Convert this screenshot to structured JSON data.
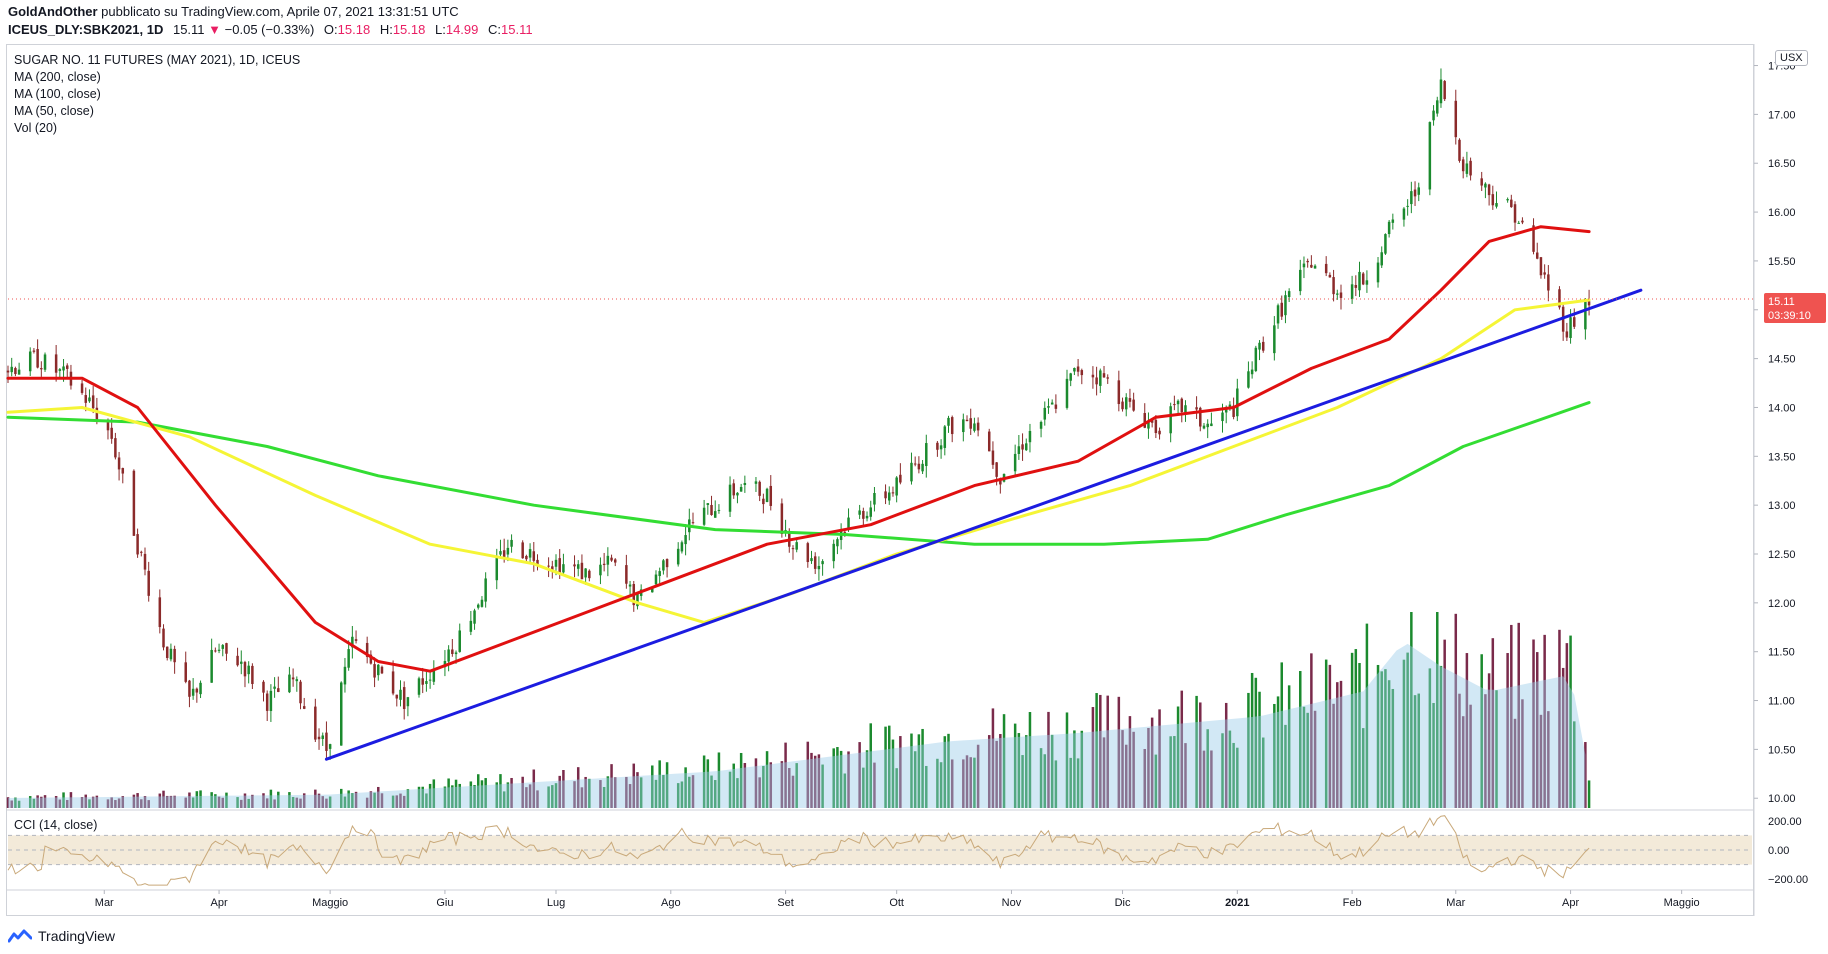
{
  "header": {
    "publisher": "GoldAndOther",
    "published_text": "pubblicato su TradingView.com, Aprile 07, 2021 13:31:51 UTC",
    "symbol": "ICEUS_DLY:SBK2021, 1D",
    "last": "15.11",
    "change": "−0.05 (−0.33%)",
    "open_label": "O:",
    "open": "15.18",
    "high_label": "H:",
    "high": "15.18",
    "low_label": "L:",
    "low": "14.99",
    "close_label": "C:",
    "close": "15.11"
  },
  "legend": {
    "title": "SUGAR NO. 11 FUTURES (MAY 2021), 1D, ICEUS",
    "ma200": "MA (200, close)",
    "ma100": "MA (100, close)",
    "ma50": "MA (50, close)",
    "vol": "Vol (20)"
  },
  "cci_label": "CCI (14, close)",
  "currency_badge": "USX",
  "price_tag": {
    "price": "15.11",
    "countdown": "03:39:10"
  },
  "footer": {
    "brand": "TradingView"
  },
  "colors": {
    "up": "#1b8a2e",
    "down": "#8b2a2a",
    "vol_up": "#1b8a2e",
    "vol_down": "#7a2a4a",
    "ma200": "#33dd33",
    "ma100": "#f5f536",
    "ma50": "#e01010",
    "trendline": "#1c1ce0",
    "vol_ma": "#9ccbe8",
    "cci": "#c9a97a",
    "price_tag": "#ef5350"
  },
  "chart_data": {
    "type": "candlestick",
    "y_ticks": [
      "17.50",
      "17.00",
      "16.50",
      "16.00",
      "15.50",
      "15.00",
      "14.50",
      "14.00",
      "13.50",
      "13.00",
      "12.50",
      "12.00",
      "11.50",
      "11.00",
      "10.50",
      "10.00"
    ],
    "ylim": [
      9.9,
      17.7
    ],
    "x_ticks": [
      "Mar",
      "Apr",
      "Maggio",
      "Giu",
      "Lug",
      "Ago",
      "Set",
      "Ott",
      "Nov",
      "Dic",
      "2021",
      "Feb",
      "Mar",
      "Apr",
      "Maggio"
    ],
    "x_range": [
      "2020-02-04",
      "2021-05-20"
    ],
    "x_tick_dates": [
      "2020-03-01",
      "2020-04-01",
      "2020-05-01",
      "2020-06-01",
      "2020-07-01",
      "2020-08-01",
      "2020-09-01",
      "2020-10-01",
      "2020-11-01",
      "2020-12-01",
      "2021-01-01",
      "2021-02-01",
      "2021-03-01",
      "2021-04-01",
      "2021-05-01"
    ],
    "close_path": [
      [
        "2020-02-04",
        14.4
      ],
      [
        "2020-02-12",
        14.5
      ],
      [
        "2020-02-20",
        14.3
      ],
      [
        "2020-02-26",
        14.05
      ],
      [
        "2020-03-03",
        13.7
      ],
      [
        "2020-03-10",
        12.6
      ],
      [
        "2020-03-17",
        11.6
      ],
      [
        "2020-03-24",
        11.0
      ],
      [
        "2020-03-31",
        11.5
      ],
      [
        "2020-04-07",
        11.4
      ],
      [
        "2020-04-14",
        11.0
      ],
      [
        "2020-04-21",
        11.2
      ],
      [
        "2020-04-27",
        10.7
      ],
      [
        "2020-04-30",
        10.5
      ],
      [
        "2020-05-07",
        11.6
      ],
      [
        "2020-05-14",
        11.3
      ],
      [
        "2020-05-21",
        11.0
      ],
      [
        "2020-05-28",
        11.3
      ],
      [
        "2020-06-04",
        11.6
      ],
      [
        "2020-06-11",
        12.1
      ],
      [
        "2020-06-18",
        12.6
      ],
      [
        "2020-06-25",
        12.5
      ],
      [
        "2020-07-02",
        12.4
      ],
      [
        "2020-07-09",
        12.3
      ],
      [
        "2020-07-16",
        12.4
      ],
      [
        "2020-07-23",
        12.0
      ],
      [
        "2020-07-30",
        12.4
      ],
      [
        "2020-08-06",
        12.8
      ],
      [
        "2020-08-13",
        13.0
      ],
      [
        "2020-08-20",
        13.2
      ],
      [
        "2020-08-27",
        13.1
      ],
      [
        "2020-09-03",
        12.6
      ],
      [
        "2020-09-10",
        12.4
      ],
      [
        "2020-09-17",
        12.8
      ],
      [
        "2020-09-24",
        13.0
      ],
      [
        "2020-10-01",
        13.2
      ],
      [
        "2020-10-08",
        13.5
      ],
      [
        "2020-10-15",
        13.8
      ],
      [
        "2020-10-22",
        13.9
      ],
      [
        "2020-10-29",
        13.3
      ],
      [
        "2020-11-05",
        13.7
      ],
      [
        "2020-11-12",
        14.0
      ],
      [
        "2020-11-19",
        14.4
      ],
      [
        "2020-11-26",
        14.3
      ],
      [
        "2020-12-03",
        14.0
      ],
      [
        "2020-12-10",
        13.8
      ],
      [
        "2020-12-17",
        14.0
      ],
      [
        "2020-12-24",
        13.8
      ],
      [
        "2020-12-31",
        14.0
      ],
      [
        "2021-01-07",
        14.6
      ],
      [
        "2021-01-14",
        15.1
      ],
      [
        "2021-01-21",
        15.5
      ],
      [
        "2021-01-28",
        15.2
      ],
      [
        "2021-02-04",
        15.3
      ],
      [
        "2021-02-11",
        15.8
      ],
      [
        "2021-02-18",
        16.2
      ],
      [
        "2021-02-25",
        17.3
      ],
      [
        "2021-03-03",
        16.5
      ],
      [
        "2021-03-10",
        16.2
      ],
      [
        "2021-03-17",
        16.0
      ],
      [
        "2021-03-24",
        15.4
      ],
      [
        "2021-03-31",
        14.8
      ],
      [
        "2021-04-06",
        15.11
      ]
    ],
    "ma50": [
      [
        "2020-02-04",
        14.3
      ],
      [
        "2020-02-24",
        14.3
      ],
      [
        "2020-03-10",
        14.0
      ],
      [
        "2020-03-31",
        13.0
      ],
      [
        "2020-04-27",
        11.8
      ],
      [
        "2020-05-14",
        11.4
      ],
      [
        "2020-05-28",
        11.3
      ],
      [
        "2020-06-18",
        11.6
      ],
      [
        "2020-07-09",
        11.9
      ],
      [
        "2020-07-30",
        12.2
      ],
      [
        "2020-08-27",
        12.6
      ],
      [
        "2020-09-24",
        12.8
      ],
      [
        "2020-10-22",
        13.2
      ],
      [
        "2020-11-19",
        13.45
      ],
      [
        "2020-12-10",
        13.9
      ],
      [
        "2020-12-31",
        14.0
      ],
      [
        "2021-01-21",
        14.4
      ],
      [
        "2021-02-11",
        14.7
      ],
      [
        "2021-02-25",
        15.2
      ],
      [
        "2021-03-10",
        15.7
      ],
      [
        "2021-03-24",
        15.85
      ],
      [
        "2021-04-06",
        15.8
      ]
    ],
    "ma100": [
      [
        "2020-02-04",
        13.95
      ],
      [
        "2020-02-24",
        14.0
      ],
      [
        "2020-03-24",
        13.7
      ],
      [
        "2020-04-27",
        13.1
      ],
      [
        "2020-05-28",
        12.6
      ],
      [
        "2020-06-25",
        12.4
      ],
      [
        "2020-07-23",
        12.0
      ],
      [
        "2020-08-10",
        11.8
      ],
      [
        "2020-09-03",
        12.1
      ],
      [
        "2020-10-01",
        12.5
      ],
      [
        "2020-11-05",
        12.9
      ],
      [
        "2020-12-03",
        13.2
      ],
      [
        "2020-12-31",
        13.6
      ],
      [
        "2021-01-28",
        14.0
      ],
      [
        "2021-02-25",
        14.5
      ],
      [
        "2021-03-17",
        15.0
      ],
      [
        "2021-04-06",
        15.1
      ]
    ],
    "ma200": [
      [
        "2020-02-04",
        13.9
      ],
      [
        "2020-03-10",
        13.85
      ],
      [
        "2020-04-14",
        13.6
      ],
      [
        "2020-05-14",
        13.3
      ],
      [
        "2020-06-25",
        13.0
      ],
      [
        "2020-08-13",
        12.75
      ],
      [
        "2020-09-17",
        12.7
      ],
      [
        "2020-10-22",
        12.6
      ],
      [
        "2020-11-26",
        12.6
      ],
      [
        "2020-12-24",
        12.65
      ],
      [
        "2021-01-14",
        12.9
      ],
      [
        "2021-02-11",
        13.2
      ],
      [
        "2021-03-03",
        13.6
      ],
      [
        "2021-04-06",
        14.05
      ]
    ],
    "trendline": [
      [
        "2020-04-30",
        10.4
      ],
      [
        "2021-04-20",
        15.2
      ]
    ],
    "volume_ylim": [
      0,
      1.0
    ],
    "volume_bursts": [
      [
        "2020-02-04",
        0.06
      ],
      [
        "2020-04-30",
        0.08
      ],
      [
        "2020-08-13",
        0.22
      ],
      [
        "2020-09-10",
        0.3
      ],
      [
        "2020-10-15",
        0.4
      ],
      [
        "2020-11-19",
        0.45
      ],
      [
        "2021-01-07",
        0.55
      ],
      [
        "2021-02-04",
        0.7
      ],
      [
        "2021-02-15",
        1.0
      ],
      [
        "2021-02-25",
        0.85
      ],
      [
        "2021-03-10",
        0.7
      ],
      [
        "2021-04-01",
        0.8
      ],
      [
        "2021-04-06",
        0.2
      ]
    ],
    "cci_ticks": [
      "200.00",
      "0.00",
      "−200.00"
    ],
    "cci_ylim": [
      -260,
      260
    ],
    "cci_band": [
      -100,
      100
    ]
  }
}
